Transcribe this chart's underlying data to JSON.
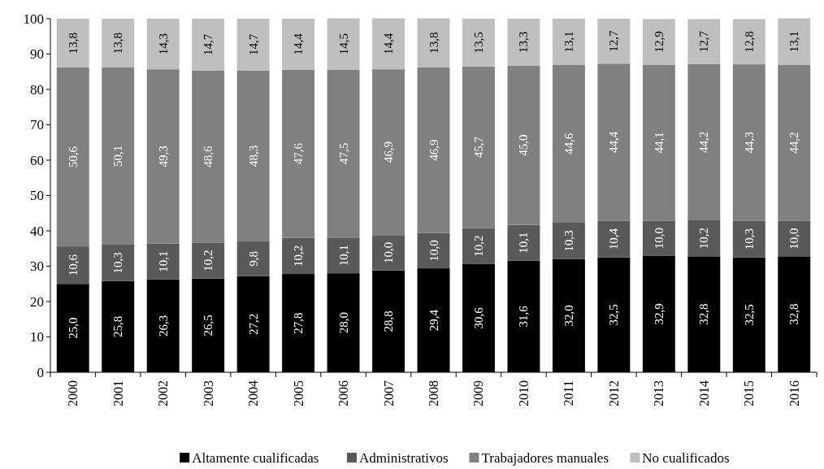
{
  "chart_data": {
    "type": "bar",
    "stacked": true,
    "categories": [
      "2000",
      "2001",
      "2002",
      "2003",
      "2004",
      "2005",
      "2006",
      "2007",
      "2008",
      "2009",
      "2010",
      "2011",
      "2012",
      "2013",
      "2014",
      "2015",
      "2016"
    ],
    "series": [
      {
        "name": "Altamente cualificadas",
        "color": "#000000",
        "values": [
          25.0,
          25.8,
          26.3,
          26.5,
          27.2,
          27.8,
          28.0,
          28.8,
          29.4,
          30.6,
          31.6,
          32.0,
          32.5,
          32.9,
          32.8,
          32.5,
          32.8
        ],
        "value_labels": [
          "25,0",
          "25,8",
          "26,3",
          "26,5",
          "27,2",
          "27,8",
          "28,0",
          "28,8",
          "29,4",
          "30,6",
          "31,6",
          "32,0",
          "32,5",
          "32,9",
          "32,8",
          "32,5",
          "32,8"
        ]
      },
      {
        "name": "Administrativos",
        "color": "#595959",
        "values": [
          10.6,
          10.3,
          10.1,
          10.2,
          9.8,
          10.2,
          10.1,
          10.0,
          10.0,
          10.2,
          10.1,
          10.3,
          10.4,
          10.0,
          10.2,
          10.3,
          10.0
        ],
        "value_labels": [
          "10,6",
          "10,3",
          "10,1",
          "10,2",
          "9,8",
          "10,2",
          "10,1",
          "10,0",
          "10,0",
          "10,2",
          "10,1",
          "10,3",
          "10,4",
          "10,0",
          "10,2",
          "10,3",
          "10,0"
        ]
      },
      {
        "name": "Trabajadores manuales",
        "color": "#808080",
        "values": [
          50.6,
          50.1,
          49.3,
          48.6,
          48.3,
          47.6,
          47.5,
          46.9,
          46.9,
          45.7,
          45.0,
          44.6,
          44.4,
          44.1,
          44.2,
          44.3,
          44.2
        ],
        "value_labels": [
          "50,6",
          "50,1",
          "49,3",
          "48,6",
          "48,3",
          "47,6",
          "47,5",
          "46,9",
          "46,9",
          "45,7",
          "45,0",
          "44,6",
          "44,4",
          "44,1",
          "44,2",
          "44,3",
          "44,2"
        ]
      },
      {
        "name": "No cualificados",
        "color": "#bfbfbf",
        "values": [
          13.8,
          13.8,
          14.3,
          14.7,
          14.7,
          14.4,
          14.5,
          14.4,
          13.8,
          13.5,
          13.3,
          13.1,
          12.7,
          12.9,
          12.7,
          12.8,
          13.1
        ],
        "value_labels": [
          "13,8",
          "13,8",
          "14,3",
          "14,7",
          "14,7",
          "14,4",
          "14,5",
          "14,4",
          "13,8",
          "13,5",
          "13,3",
          "13,1",
          "12,7",
          "12,9",
          "12,7",
          "12,8",
          "13,1"
        ]
      }
    ],
    "ylim": [
      0,
      100
    ],
    "yticks": [
      0,
      10,
      20,
      30,
      40,
      50,
      60,
      70,
      80,
      90,
      100
    ],
    "grid": false,
    "legend": "bottom"
  }
}
